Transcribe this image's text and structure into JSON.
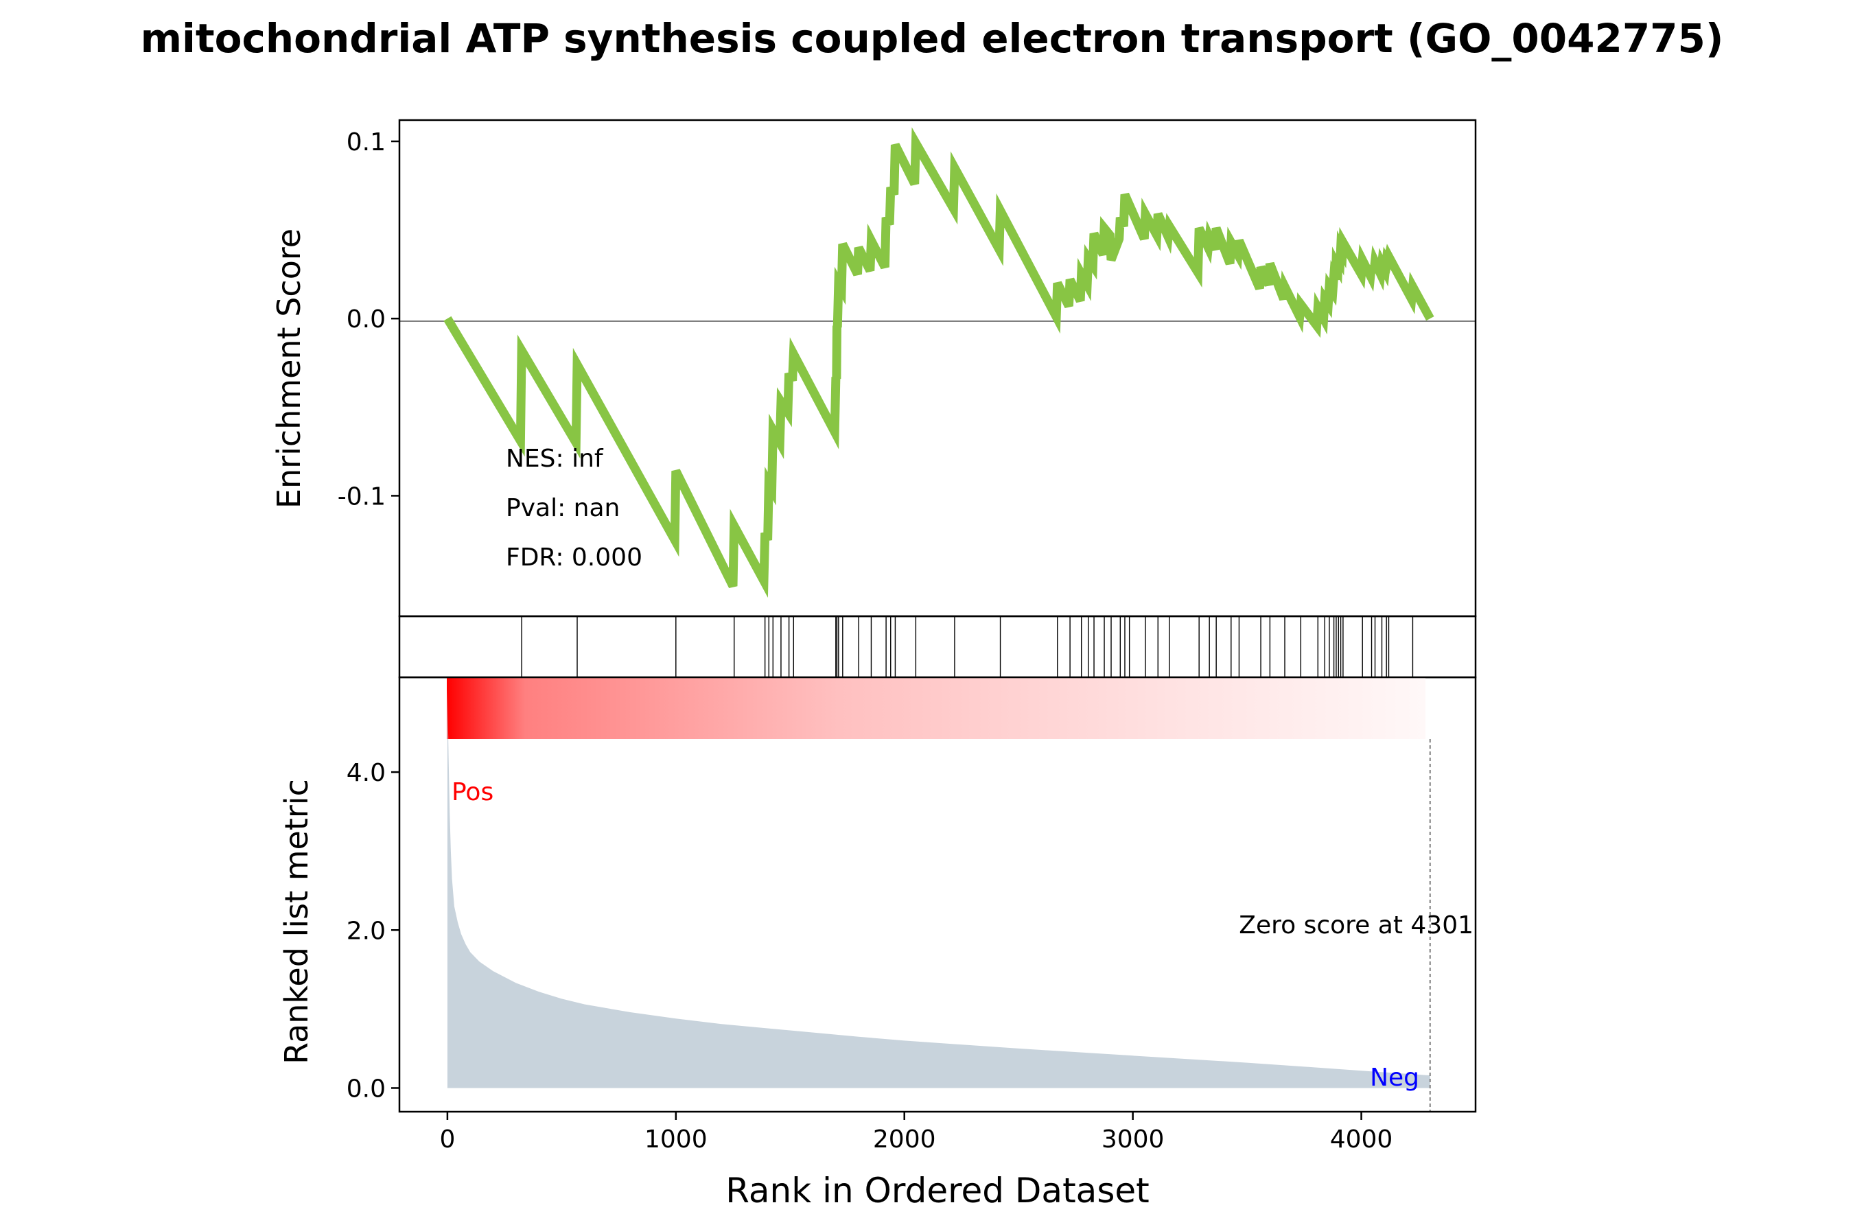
{
  "title": "mitochondrial ATP synthesis coupled electron transport (GO_0042775)",
  "colors": {
    "es_line": "#88c544",
    "metric_fill": "#c8d3dc",
    "pos_label": "#ff0000",
    "neg_label": "#0000ff",
    "heat_start": "#ff0000",
    "heat_end": "#ffffff"
  },
  "chart_data": {
    "type": "line",
    "xlabel": "Rank in Ordered Dataset",
    "xlim": [
      -210,
      4500
    ],
    "x_ticks": [
      0,
      1000,
      2000,
      3000,
      4000
    ],
    "x_tick_labels": [
      "0",
      "1000",
      "2000",
      "3000",
      "4000"
    ],
    "enrichment": {
      "ylabel": "Enrichment Score",
      "ylim": [
        -0.168,
        0.112
      ],
      "y_ticks": [
        0.1,
        0.0,
        -0.1
      ],
      "y_tick_labels": [
        "0.1",
        "0.0",
        "-0.1"
      ],
      "stats": [
        "NES: inf",
        "Pval: nan",
        "FDR: 0.000"
      ],
      "hit_ranks": [
        325,
        568,
        1000,
        1255,
        1390,
        1407,
        1425,
        1460,
        1495,
        1515,
        1700,
        1705,
        1712,
        1730,
        1800,
        1855,
        1920,
        1940,
        1960,
        2050,
        2220,
        2420,
        2670,
        2725,
        2775,
        2805,
        2830,
        2875,
        2905,
        2945,
        2965,
        2985,
        3055,
        3110,
        3160,
        3290,
        3335,
        3365,
        3430,
        3465,
        3560,
        3600,
        3665,
        3735,
        3810,
        3840,
        3860,
        3880,
        3890,
        3900,
        3910,
        3920,
        4005,
        4045,
        4060,
        4090,
        4110,
        4120,
        4225
      ],
      "es_points": [
        [
          0,
          0.0
        ],
        [
          320,
          -0.069
        ],
        [
          325,
          -0.018
        ],
        [
          563,
          -0.07
        ],
        [
          568,
          -0.026
        ],
        [
          995,
          -0.125
        ],
        [
          1000,
          -0.086
        ],
        [
          1250,
          -0.151
        ],
        [
          1255,
          -0.117
        ],
        [
          1385,
          -0.148
        ],
        [
          1390,
          -0.121
        ],
        [
          1402,
          -0.125
        ],
        [
          1407,
          -0.093
        ],
        [
          1420,
          -0.096
        ],
        [
          1425,
          -0.063
        ],
        [
          1455,
          -0.07
        ],
        [
          1460,
          -0.047
        ],
        [
          1490,
          -0.053
        ],
        [
          1495,
          -0.031
        ],
        [
          1510,
          -0.035
        ],
        [
          1515,
          -0.02
        ],
        [
          1695,
          -0.064
        ],
        [
          1700,
          -0.033
        ],
        [
          1703,
          -0.034
        ],
        [
          1705,
          -0.004
        ],
        [
          1707,
          -0.005
        ],
        [
          1712,
          0.02
        ],
        [
          1725,
          0.017
        ],
        [
          1730,
          0.042
        ],
        [
          1795,
          0.025
        ],
        [
          1800,
          0.04
        ],
        [
          1850,
          0.027
        ],
        [
          1855,
          0.044
        ],
        [
          1915,
          0.029
        ],
        [
          1920,
          0.057
        ],
        [
          1935,
          0.053
        ],
        [
          1940,
          0.074
        ],
        [
          1955,
          0.07
        ],
        [
          1960,
          0.098
        ],
        [
          2045,
          0.076
        ],
        [
          2050,
          0.099
        ],
        [
          2215,
          0.062
        ],
        [
          2220,
          0.085
        ],
        [
          2415,
          0.039
        ],
        [
          2420,
          0.061
        ],
        [
          2665,
          0.001
        ],
        [
          2670,
          0.02
        ],
        [
          2720,
          0.007
        ],
        [
          2725,
          0.022
        ],
        [
          2770,
          0.01
        ],
        [
          2775,
          0.025
        ],
        [
          2800,
          0.019
        ],
        [
          2805,
          0.034
        ],
        [
          2825,
          0.03
        ],
        [
          2830,
          0.048
        ],
        [
          2870,
          0.036
        ],
        [
          2875,
          0.051
        ],
        [
          2900,
          0.047
        ],
        [
          2905,
          0.033
        ],
        [
          2940,
          0.045
        ],
        [
          2945,
          0.057
        ],
        [
          2960,
          0.052
        ],
        [
          2965,
          0.07
        ],
        [
          3050,
          0.045
        ],
        [
          3055,
          0.059
        ],
        [
          3105,
          0.047
        ],
        [
          3110,
          0.059
        ],
        [
          3155,
          0.046
        ],
        [
          3160,
          0.052
        ],
        [
          3285,
          0.026
        ],
        [
          3290,
          0.051
        ],
        [
          3330,
          0.04
        ],
        [
          3335,
          0.046
        ],
        [
          3360,
          0.039
        ],
        [
          3365,
          0.051
        ],
        [
          3425,
          0.031
        ],
        [
          3430,
          0.043
        ],
        [
          3460,
          0.036
        ],
        [
          3465,
          0.044
        ],
        [
          3555,
          0.017
        ],
        [
          3560,
          0.029
        ],
        [
          3595,
          0.019
        ],
        [
          3600,
          0.031
        ],
        [
          3660,
          0.011
        ],
        [
          3665,
          0.018
        ],
        [
          3730,
          0.001
        ],
        [
          3735,
          0.008
        ],
        [
          3805,
          -0.004
        ],
        [
          3810,
          0.006
        ],
        [
          3835,
          0.0
        ],
        [
          3840,
          0.011
        ],
        [
          3855,
          0.008
        ],
        [
          3860,
          0.018
        ],
        [
          3875,
          0.015
        ],
        [
          3880,
          0.024
        ],
        [
          3888,
          0.022
        ],
        [
          3890,
          0.031
        ],
        [
          3898,
          0.029
        ],
        [
          3900,
          0.036
        ],
        [
          3908,
          0.034
        ],
        [
          3910,
          0.04
        ],
        [
          3918,
          0.038
        ],
        [
          3920,
          0.043
        ],
        [
          4000,
          0.025
        ],
        [
          4005,
          0.033
        ],
        [
          4040,
          0.024
        ],
        [
          4045,
          0.03
        ],
        [
          4055,
          0.026
        ],
        [
          4060,
          0.032
        ],
        [
          4085,
          0.025
        ],
        [
          4090,
          0.031
        ],
        [
          4105,
          0.027
        ],
        [
          4110,
          0.033
        ],
        [
          4115,
          0.032
        ],
        [
          4120,
          0.035
        ],
        [
          4220,
          0.011
        ],
        [
          4225,
          0.018
        ],
        [
          4301,
          0.0
        ]
      ]
    },
    "ranked_metric": {
      "ylabel": "Ranked list metric",
      "ylim": [
        -0.3,
        5.2
      ],
      "y_ticks": [
        0.0,
        2.0,
        4.0
      ],
      "y_tick_labels": [
        "0.0",
        "2.0",
        "4.0"
      ],
      "pos_label": "Pos",
      "neg_label": "Neg",
      "zero_cross_label": "Zero score at 4301",
      "zero_cross_rank": 4301,
      "metric_points": [
        [
          0,
          5.05
        ],
        [
          5,
          4.2
        ],
        [
          10,
          3.5
        ],
        [
          15,
          3.0
        ],
        [
          20,
          2.65
        ],
        [
          30,
          2.3
        ],
        [
          45,
          2.1
        ],
        [
          60,
          1.95
        ],
        [
          80,
          1.82
        ],
        [
          100,
          1.72
        ],
        [
          140,
          1.6
        ],
        [
          200,
          1.48
        ],
        [
          300,
          1.33
        ],
        [
          400,
          1.22
        ],
        [
          500,
          1.13
        ],
        [
          600,
          1.06
        ],
        [
          800,
          0.96
        ],
        [
          1000,
          0.88
        ],
        [
          1200,
          0.81
        ],
        [
          1500,
          0.73
        ],
        [
          1800,
          0.65
        ],
        [
          2000,
          0.6
        ],
        [
          2500,
          0.5
        ],
        [
          3000,
          0.41
        ],
        [
          3500,
          0.32
        ],
        [
          3800,
          0.26
        ],
        [
          4000,
          0.22
        ],
        [
          4200,
          0.18
        ],
        [
          4301,
          0.16
        ]
      ]
    }
  }
}
